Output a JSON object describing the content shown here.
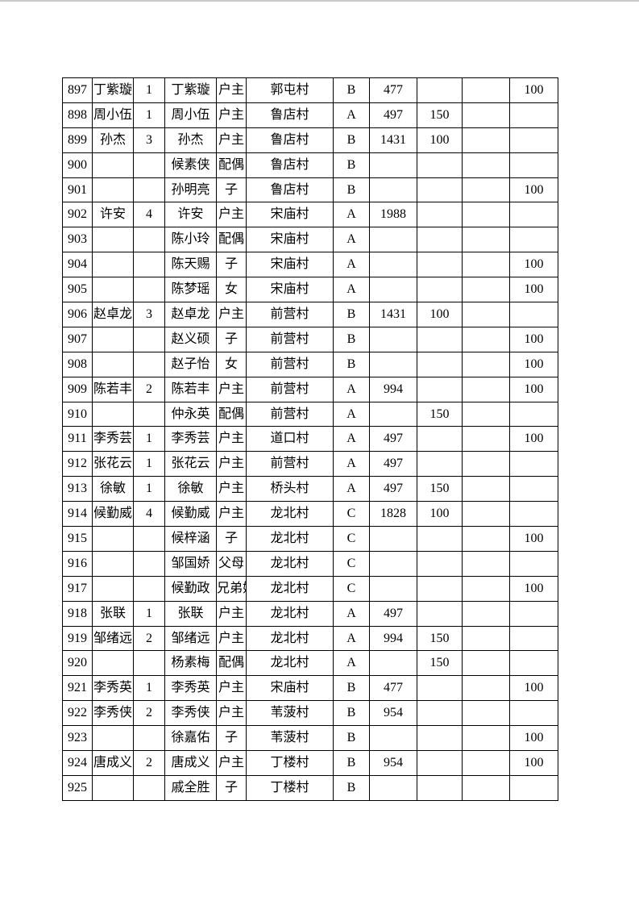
{
  "colors": {
    "background": "#ffffff",
    "grid_border": "#000000",
    "text": "#000000"
  },
  "table": {
    "row_range_start": "897",
    "row_range_end": "925",
    "rows": [
      [
        "897",
        "丁紫璇",
        "1",
        "丁紫璇",
        "户主",
        "郭屯村",
        "B",
        "477",
        "",
        "",
        "100"
      ],
      [
        "898",
        "周小伍",
        "1",
        "周小伍",
        "户主",
        "鲁店村",
        "A",
        "497",
        "150",
        "",
        ""
      ],
      [
        "899",
        "孙杰",
        "3",
        "孙杰",
        "户主",
        "鲁店村",
        "B",
        "1431",
        "100",
        "",
        ""
      ],
      [
        "900",
        "",
        "",
        "候素侠",
        "配偶",
        "鲁店村",
        "B",
        "",
        "",
        "",
        ""
      ],
      [
        "901",
        "",
        "",
        "孙明亮",
        "子",
        "鲁店村",
        "B",
        "",
        "",
        "",
        "100"
      ],
      [
        "902",
        "许安",
        "4",
        "许安",
        "户主",
        "宋庙村",
        "A",
        "1988",
        "",
        "",
        ""
      ],
      [
        "903",
        "",
        "",
        "陈小玲",
        "配偶",
        "宋庙村",
        "A",
        "",
        "",
        "",
        ""
      ],
      [
        "904",
        "",
        "",
        "陈天赐",
        "子",
        "宋庙村",
        "A",
        "",
        "",
        "",
        "100"
      ],
      [
        "905",
        "",
        "",
        "陈梦瑶",
        "女",
        "宋庙村",
        "A",
        "",
        "",
        "",
        "100"
      ],
      [
        "906",
        "赵卓龙",
        "3",
        "赵卓龙",
        "户主",
        "前营村",
        "B",
        "1431",
        "100",
        "",
        ""
      ],
      [
        "907",
        "",
        "",
        "赵义硕",
        "子",
        "前营村",
        "B",
        "",
        "",
        "",
        "100"
      ],
      [
        "908",
        "",
        "",
        "赵子怡",
        "女",
        "前营村",
        "B",
        "",
        "",
        "",
        "100"
      ],
      [
        "909",
        "陈若丰",
        "2",
        "陈若丰",
        "户主",
        "前营村",
        "A",
        "994",
        "",
        "",
        "100"
      ],
      [
        "910",
        "",
        "",
        "仲永英",
        "配偶",
        "前营村",
        "A",
        "",
        "150",
        "",
        ""
      ],
      [
        "911",
        "李秀芸",
        "1",
        "李秀芸",
        "户主",
        "道口村",
        "A",
        "497",
        "",
        "",
        "100"
      ],
      [
        "912",
        "张花云",
        "1",
        "张花云",
        "户主",
        "前营村",
        "A",
        "497",
        "",
        "",
        ""
      ],
      [
        "913",
        "徐敏",
        "1",
        "徐敏",
        "户主",
        "桥头村",
        "A",
        "497",
        "150",
        "",
        ""
      ],
      [
        "914",
        "候勤威",
        "4",
        "候勤威",
        "户主",
        "龙北村",
        "C",
        "1828",
        "100",
        "",
        ""
      ],
      [
        "915",
        "",
        "",
        "候梓涵",
        "子",
        "龙北村",
        "C",
        "",
        "",
        "",
        "100"
      ],
      [
        "916",
        "",
        "",
        "邹国娇",
        "父母",
        "龙北村",
        "C",
        "",
        "",
        "",
        ""
      ],
      [
        "917",
        "",
        "",
        "候勤政",
        "兄弟姐妹",
        "龙北村",
        "C",
        "",
        "",
        "",
        "100"
      ],
      [
        "918",
        "张联",
        "1",
        "张联",
        "户主",
        "龙北村",
        "A",
        "497",
        "",
        "",
        ""
      ],
      [
        "919",
        "邹绪远",
        "2",
        "邹绪远",
        "户主",
        "龙北村",
        "A",
        "994",
        "150",
        "",
        ""
      ],
      [
        "920",
        "",
        "",
        "杨素梅",
        "配偶",
        "龙北村",
        "A",
        "",
        "150",
        "",
        ""
      ],
      [
        "921",
        "李秀英",
        "1",
        "李秀英",
        "户主",
        "宋庙村",
        "B",
        "477",
        "",
        "",
        "100"
      ],
      [
        "922",
        "李秀侠",
        "2",
        "李秀侠",
        "户主",
        "苇菠村",
        "B",
        "954",
        "",
        "",
        ""
      ],
      [
        "923",
        "",
        "",
        "徐嘉佑",
        "子",
        "苇菠村",
        "B",
        "",
        "",
        "",
        "100"
      ],
      [
        "924",
        "唐成义",
        "2",
        "唐成义",
        "户主",
        "丁楼村",
        "B",
        "954",
        "",
        "",
        "100"
      ],
      [
        "925",
        "",
        "",
        "戚全胜",
        "子",
        "丁楼村",
        "B",
        "",
        "",
        "",
        ""
      ]
    ]
  }
}
